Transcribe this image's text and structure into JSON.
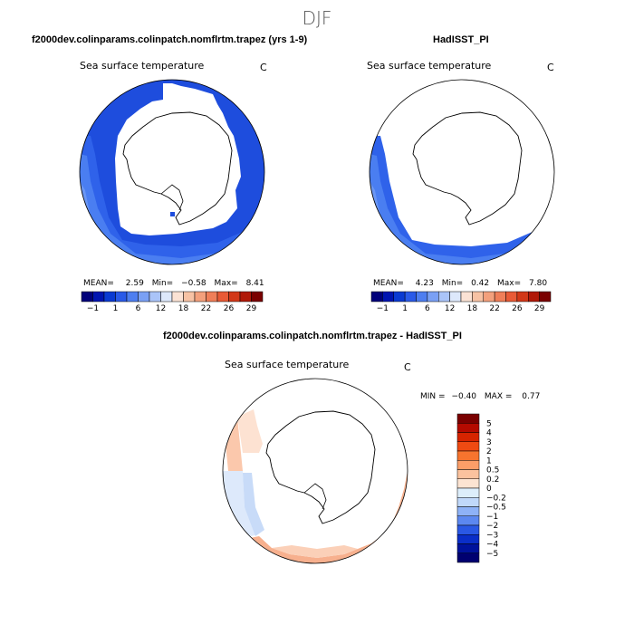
{
  "season_title": "DJF",
  "panels": [
    {
      "title": "f2000dev.colinparams.colinpatch.nomflrtm.trapez (yrs 1-9)",
      "subtitle": "Sea surface temperature",
      "units": "C",
      "stats": {
        "mean_label": "MEAN=",
        "mean": "2.59",
        "min_label": "Min=",
        "min": "−0.58",
        "max_label": "Max=",
        "max": "8.41"
      }
    },
    {
      "title": "HadISST_PI",
      "subtitle": "Sea surface temperature",
      "units": "C",
      "stats": {
        "mean_label": "MEAN=",
        "mean": "4.23",
        "min_label": "Min=",
        "min": "0.42",
        "max_label": "Max=",
        "max": "7.80"
      }
    },
    {
      "title": "f2000dev.colinparams.colinpatch.nomflrtm.trapez - HadISST_PI",
      "subtitle": "Sea surface temperature",
      "units": "C",
      "stats": {
        "min_label": "MIN =",
        "min": "−0.40",
        "max_label": "MAX =",
        "max": "0.77"
      }
    }
  ],
  "chart_data": [
    {
      "type": "heatmap",
      "title": "f2000dev.colinparams.colinpatch.nomflrtm.trapez (yrs 1-9)",
      "subtitle": "Sea surface temperature",
      "units": "C",
      "projection": "south polar stereographic",
      "stats": {
        "mean": 2.59,
        "min": -0.58,
        "max": 8.41
      },
      "colorbar": {
        "orientation": "horizontal",
        "tick_labels": [
          "−1",
          "1",
          "6",
          "12",
          "18",
          "22",
          "26",
          "29"
        ],
        "colors": [
          "#00007a",
          "#0014b0",
          "#0a3ad2",
          "#2a5ae8",
          "#4e7ef0",
          "#7aa0f4",
          "#aac4f8",
          "#dde8fb",
          "#fbe2d4",
          "#f7c2a4",
          "#f3a07c",
          "#ef7e58",
          "#e85a36",
          "#d23818",
          "#b01808",
          "#7a0000"
        ]
      }
    },
    {
      "type": "heatmap",
      "title": "HadISST_PI",
      "subtitle": "Sea surface temperature",
      "units": "C",
      "projection": "south polar stereographic",
      "stats": {
        "mean": 4.23,
        "min": 0.42,
        "max": 7.8
      },
      "colorbar": {
        "orientation": "horizontal",
        "tick_labels": [
          "−1",
          "1",
          "6",
          "12",
          "18",
          "22",
          "26",
          "29"
        ],
        "colors": [
          "#00007a",
          "#0014b0",
          "#0a3ad2",
          "#2a5ae8",
          "#4e7ef0",
          "#7aa0f4",
          "#aac4f8",
          "#dde8fb",
          "#fbe2d4",
          "#f7c2a4",
          "#f3a07c",
          "#ef7e58",
          "#e85a36",
          "#d23818",
          "#b01808",
          "#7a0000"
        ]
      }
    },
    {
      "type": "heatmap",
      "title": "f2000dev.colinparams.colinpatch.nomflrtm.trapez - HadISST_PI",
      "subtitle": "Sea surface temperature",
      "units": "C",
      "projection": "south polar stereographic",
      "stats": {
        "min": -0.4,
        "max": 0.77
      },
      "colorbar": {
        "orientation": "vertical",
        "tick_labels": [
          "5",
          "4",
          "3",
          "2",
          "1",
          "0.5",
          "0.2",
          "0",
          "−0.2",
          "−0.5",
          "−1",
          "−2",
          "−3",
          "−4",
          "−5"
        ],
        "colors": [
          "#7a0000",
          "#b40a00",
          "#d62400",
          "#ef4a12",
          "#f7742e",
          "#fb9e68",
          "#fbc29e",
          "#fde4d2",
          "#ddeefb",
          "#c0d8fa",
          "#8eb2f7",
          "#5c88f0",
          "#2a58e4",
          "#0a2ec8",
          "#00129c",
          "#000070"
        ]
      }
    }
  ]
}
